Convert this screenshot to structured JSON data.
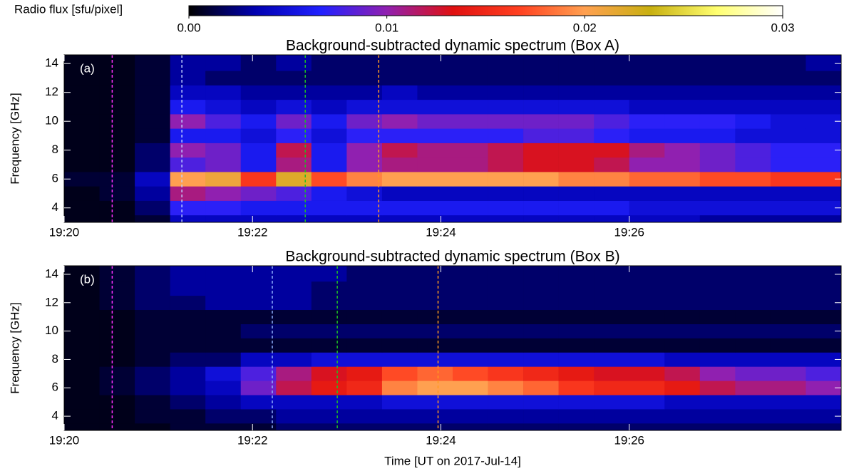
{
  "colorbar": {
    "label": "Radio flux [sfu/pixel]",
    "lim": [
      0,
      0.03
    ],
    "ticks": [
      {
        "value": 0,
        "label": "0.00"
      },
      0.01,
      0.02,
      0.03
    ],
    "colormap": [
      "#000000",
      "#0000b0",
      "#2020ff",
      "#9020b0",
      "#e01010",
      "#ff4020",
      "#ffa050",
      "#c8b010",
      "#ffff70",
      "#ffffff"
    ]
  },
  "chart_data": [
    {
      "type": "heatmap",
      "title": "Background-subtracted dynamic spectrum (Box A)",
      "panel_label": "(a)",
      "ylabel": "Frequency [GHz]",
      "xlim": [
        0,
        8.25
      ],
      "xticks": [
        {
          "value": 0,
          "label": "19:20"
        },
        {
          "value": 2,
          "label": "19:22"
        },
        {
          "value": 4,
          "label": "19:24"
        },
        {
          "value": 6,
          "label": "19:26"
        }
      ],
      "ylim": [
        3,
        14.6
      ],
      "yticks": [
        4,
        6,
        8,
        10,
        12,
        14
      ],
      "x_bins": [
        0,
        0.375,
        0.75,
        1.125,
        1.5,
        1.875,
        2.25,
        2.625,
        3,
        3.375,
        3.75,
        4.125,
        4.5,
        4.875,
        5.25,
        5.625,
        6,
        6.375,
        6.75,
        7.125,
        7.5,
        7.875,
        8.25
      ],
      "y_bins": [
        3,
        3.5,
        4.5,
        5.5,
        6.5,
        7.5,
        8.5,
        9.5,
        10.5,
        11.5,
        12.5,
        13.5,
        14.6
      ],
      "z": [
        [
          0.0005,
          0.0005,
          0.001,
          0.004,
          0.004,
          0.004,
          0.004,
          0.004,
          0.004,
          0.004,
          0.004,
          0.004,
          0.004,
          0.004,
          0.004,
          0.004,
          0.004,
          0.004,
          0.003,
          0.003,
          0.003,
          0.003
        ],
        [
          0.0005,
          0.0005,
          0.002,
          0.007,
          0.007,
          0.006,
          0.006,
          0.006,
          0.006,
          0.006,
          0.006,
          0.006,
          0.006,
          0.006,
          0.006,
          0.006,
          0.005,
          0.005,
          0.005,
          0.005,
          0.005,
          0.005
        ],
        [
          0.0005,
          0.001,
          0.003,
          0.011,
          0.01,
          0.009,
          0.008,
          0.006,
          0.005,
          0.004,
          0.004,
          0.004,
          0.004,
          0.004,
          0.004,
          0.004,
          0.004,
          0.004,
          0.004,
          0.004,
          0.004,
          0.004
        ],
        [
          0.001,
          0.001,
          0.004,
          0.02,
          0.021,
          0.016,
          0.022,
          0.017,
          0.019,
          0.02,
          0.02,
          0.02,
          0.02,
          0.02,
          0.019,
          0.019,
          0.018,
          0.018,
          0.017,
          0.017,
          0.016,
          0.016
        ],
        [
          0.0005,
          0.0005,
          0.002,
          0.008,
          0.009,
          0.006,
          0.011,
          0.006,
          0.01,
          0.011,
          0.011,
          0.011,
          0.012,
          0.013,
          0.013,
          0.012,
          0.01,
          0.01,
          0.009,
          0.008,
          0.007,
          0.007
        ],
        [
          0.0005,
          0.0005,
          0.002,
          0.01,
          0.009,
          0.006,
          0.012,
          0.006,
          0.01,
          0.012,
          0.011,
          0.011,
          0.012,
          0.013,
          0.013,
          0.013,
          0.011,
          0.01,
          0.009,
          0.008,
          0.007,
          0.007
        ],
        [
          0.0005,
          0.0005,
          0.001,
          0.006,
          0.006,
          0.005,
          0.007,
          0.005,
          0.007,
          0.007,
          0.007,
          0.007,
          0.007,
          0.008,
          0.008,
          0.007,
          0.006,
          0.006,
          0.006,
          0.005,
          0.005,
          0.005
        ],
        [
          0.0005,
          0.0005,
          0.001,
          0.01,
          0.008,
          0.006,
          0.009,
          0.006,
          0.009,
          0.01,
          0.009,
          0.009,
          0.009,
          0.009,
          0.009,
          0.008,
          0.007,
          0.007,
          0.007,
          0.006,
          0.005,
          0.005
        ],
        [
          0.0005,
          0.0005,
          0.001,
          0.006,
          0.005,
          0.004,
          0.005,
          0.004,
          0.005,
          0.005,
          0.005,
          0.005,
          0.005,
          0.005,
          0.005,
          0.005,
          0.004,
          0.004,
          0.004,
          0.004,
          0.004,
          0.004
        ],
        [
          0.0005,
          0.0005,
          0.001,
          0.004,
          0.004,
          0.003,
          0.003,
          0.003,
          0.003,
          0.004,
          0.003,
          0.003,
          0.003,
          0.003,
          0.003,
          0.003,
          0.003,
          0.003,
          0.003,
          0.003,
          0.003,
          0.003
        ],
        [
          0.0005,
          0.0005,
          0.001,
          0.003,
          0.002,
          0.002,
          0.002,
          0.002,
          0.002,
          0.002,
          0.002,
          0.002,
          0.002,
          0.002,
          0.002,
          0.002,
          0.002,
          0.002,
          0.002,
          0.002,
          0.002,
          0.002
        ],
        [
          0.0005,
          0.0005,
          0.001,
          0.003,
          0.003,
          0.002,
          0.003,
          0.002,
          0.002,
          0.002,
          0.002,
          0.002,
          0.002,
          0.002,
          0.002,
          0.002,
          0.002,
          0.002,
          0.002,
          0.002,
          0.002,
          0.003
        ]
      ],
      "markers": [
        {
          "x": 0.51,
          "color": "#ff30ff"
        },
        {
          "x": 1.25,
          "color": "#c0d0ff"
        },
        {
          "x": 2.56,
          "color": "#20c020"
        },
        {
          "x": 3.34,
          "color": "#ff9a20"
        }
      ]
    },
    {
      "type": "heatmap",
      "title": "Background-subtracted dynamic spectrum (Box B)",
      "panel_label": "(b)",
      "ylabel": "Frequency [GHz]",
      "xlabel": "Time [UT on 2017-Jul-14]",
      "xlim": [
        0,
        8.25
      ],
      "xticks": [
        {
          "value": 0,
          "label": "19:20"
        },
        {
          "value": 2,
          "label": "19:22"
        },
        {
          "value": 4,
          "label": "19:24"
        },
        {
          "value": 6,
          "label": "19:26"
        }
      ],
      "ylim": [
        3,
        14.6
      ],
      "yticks": [
        4,
        6,
        8,
        10,
        12,
        14
      ],
      "x_bins": [
        0,
        0.375,
        0.75,
        1.125,
        1.5,
        1.875,
        2.25,
        2.625,
        3,
        3.375,
        3.75,
        4.125,
        4.5,
        4.875,
        5.25,
        5.625,
        6,
        6.375,
        6.75,
        7.125,
        7.5,
        7.875,
        8.25
      ],
      "y_bins": [
        3,
        3.5,
        4.5,
        5.5,
        6.5,
        7.5,
        8.5,
        9.5,
        10.5,
        11.5,
        12.5,
        13.5,
        14.6
      ],
      "z": [
        [
          0.0005,
          0.0005,
          0.0005,
          0.001,
          0.001,
          0.001,
          0.002,
          0.002,
          0.002,
          0.002,
          0.002,
          0.002,
          0.002,
          0.002,
          0.002,
          0.002,
          0.002,
          0.002,
          0.002,
          0.002,
          0.002,
          0.002
        ],
        [
          0.0005,
          0.0005,
          0.001,
          0.001,
          0.002,
          0.002,
          0.003,
          0.003,
          0.003,
          0.003,
          0.003,
          0.003,
          0.003,
          0.003,
          0.003,
          0.003,
          0.003,
          0.003,
          0.003,
          0.003,
          0.003,
          0.003
        ],
        [
          0.0005,
          0.0005,
          0.001,
          0.002,
          0.003,
          0.004,
          0.004,
          0.004,
          0.004,
          0.005,
          0.005,
          0.005,
          0.005,
          0.005,
          0.005,
          0.005,
          0.005,
          0.004,
          0.004,
          0.004,
          0.004,
          0.004
        ],
        [
          0.0005,
          0.001,
          0.002,
          0.003,
          0.004,
          0.009,
          0.012,
          0.014,
          0.015,
          0.019,
          0.02,
          0.02,
          0.019,
          0.018,
          0.016,
          0.015,
          0.015,
          0.014,
          0.012,
          0.011,
          0.011,
          0.01
        ],
        [
          0.0005,
          0.001,
          0.002,
          0.003,
          0.005,
          0.008,
          0.011,
          0.013,
          0.014,
          0.017,
          0.018,
          0.017,
          0.016,
          0.015,
          0.014,
          0.013,
          0.013,
          0.012,
          0.01,
          0.009,
          0.009,
          0.008
        ],
        [
          0.0005,
          0.0005,
          0.001,
          0.002,
          0.002,
          0.004,
          0.004,
          0.005,
          0.005,
          0.005,
          0.005,
          0.005,
          0.005,
          0.005,
          0.005,
          0.005,
          0.005,
          0.004,
          0.004,
          0.004,
          0.004,
          0.004
        ],
        [
          0.0005,
          0.0005,
          0.001,
          0.001,
          0.001,
          0.001,
          0.001,
          0.001,
          0.001,
          0.001,
          0.001,
          0.001,
          0.001,
          0.001,
          0.001,
          0.001,
          0.001,
          0.001,
          0.001,
          0.001,
          0.001,
          0.001
        ],
        [
          0.0005,
          0.0005,
          0.001,
          0.001,
          0.001,
          0.002,
          0.002,
          0.002,
          0.002,
          0.002,
          0.002,
          0.002,
          0.002,
          0.002,
          0.002,
          0.002,
          0.002,
          0.002,
          0.002,
          0.002,
          0.002,
          0.002
        ],
        [
          0.0005,
          0.0005,
          0.001,
          0.001,
          0.001,
          0.001,
          0.001,
          0.001,
          0.001,
          0.001,
          0.001,
          0.001,
          0.001,
          0.001,
          0.001,
          0.001,
          0.001,
          0.001,
          0.001,
          0.001,
          0.001,
          0.001
        ],
        [
          0.0005,
          0.001,
          0.002,
          0.002,
          0.003,
          0.003,
          0.003,
          0.002,
          0.002,
          0.002,
          0.002,
          0.002,
          0.002,
          0.002,
          0.002,
          0.002,
          0.002,
          0.002,
          0.002,
          0.002,
          0.002,
          0.002
        ],
        [
          0.0005,
          0.001,
          0.002,
          0.003,
          0.003,
          0.003,
          0.003,
          0.002,
          0.002,
          0.002,
          0.002,
          0.002,
          0.002,
          0.002,
          0.002,
          0.002,
          0.002,
          0.002,
          0.002,
          0.002,
          0.002,
          0.002
        ],
        [
          0.0005,
          0.001,
          0.002,
          0.003,
          0.003,
          0.003,
          0.003,
          0.003,
          0.002,
          0.002,
          0.002,
          0.002,
          0.002,
          0.002,
          0.002,
          0.002,
          0.002,
          0.002,
          0.002,
          0.002,
          0.002,
          0.002
        ]
      ],
      "markers": [
        {
          "x": 0.51,
          "color": "#ff30ff"
        },
        {
          "x": 2.21,
          "color": "#90b0ff"
        },
        {
          "x": 2.9,
          "color": "#20c020"
        },
        {
          "x": 3.97,
          "color": "#ff9a20"
        }
      ]
    }
  ]
}
